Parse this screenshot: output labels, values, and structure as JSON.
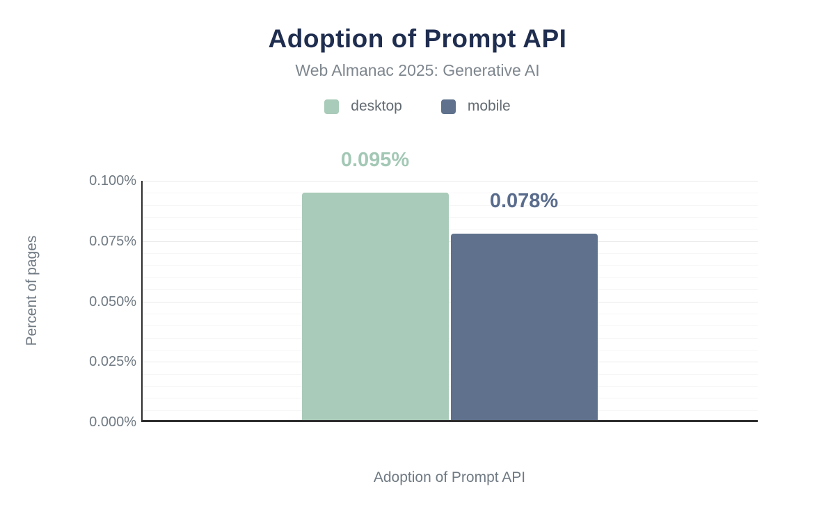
{
  "chart_data": {
    "type": "bar",
    "title": "Adoption of Prompt API",
    "subtitle": "Web Almanac 2025: Generative AI",
    "xlabel": "Adoption of Prompt API",
    "ylabel": "Percent of pages",
    "categories": [
      "Adoption of Prompt API"
    ],
    "series": [
      {
        "name": "desktop",
        "values": [
          0.095
        ],
        "value_labels": [
          "0.095%"
        ],
        "color": "#a9cbb9",
        "label_color": "#a3c8b5"
      },
      {
        "name": "mobile",
        "values": [
          0.078
        ],
        "value_labels": [
          "0.078%"
        ],
        "color": "#5f718c",
        "label_color": "#5a6c8c"
      }
    ],
    "ylim": [
      0,
      0.1
    ],
    "yticks": {
      "values": [
        0,
        0.025,
        0.05,
        0.075,
        0.1
      ],
      "labels": [
        "0.000%",
        "0.025%",
        "0.050%",
        "0.075%",
        "0.100%"
      ]
    },
    "minor_grid_step": 0.005,
    "grid": true,
    "legend_position": "top"
  },
  "colors": {
    "title": "#1f2d4f",
    "subtitle": "#7e868e",
    "axis_text": "#707a83",
    "legend_text": "#636b72",
    "axis_line": "#2e2e2e",
    "grid_minor": "#f6f6f6",
    "grid_major": "#eaeaea"
  }
}
